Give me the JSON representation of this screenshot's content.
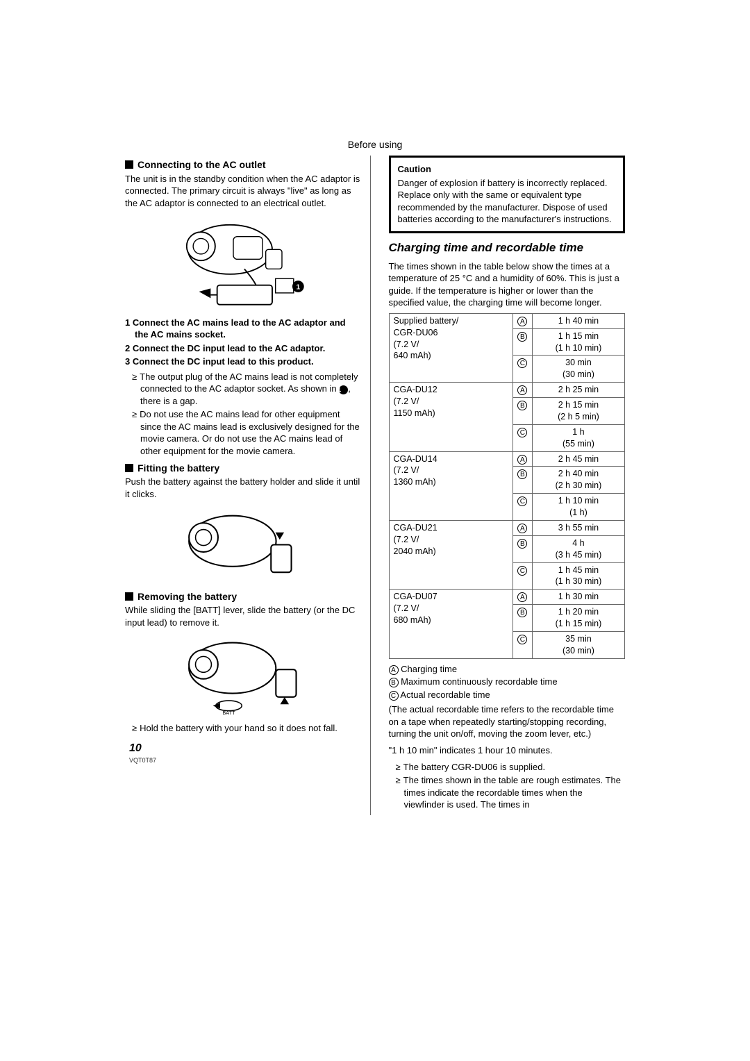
{
  "header": "Before using",
  "left": {
    "sec1": {
      "title": "Connecting to the AC outlet",
      "para": "The unit is in the standby condition when the AC adaptor is connected. The primary circuit is always \"live\" as long as the AC adaptor is connected to an electrical outlet.",
      "steps": [
        "Connect the AC mains lead to the AC adaptor and the AC mains socket.",
        "Connect the DC input lead to the AC adaptor.",
        "Connect the DC input lead to this product."
      ],
      "bullets": [
        "The output plug of the AC mains lead is not completely connected to the AC adaptor socket. As shown in ❶, there is a gap.",
        "Do not use the AC mains lead for other equipment since the AC mains lead is exclusively designed for the movie camera. Or do not use the AC mains lead of other equipment for the movie camera."
      ]
    },
    "sec2": {
      "title": "Fitting the battery",
      "para": "Push the battery against the battery holder and slide it until it clicks."
    },
    "sec3": {
      "title": "Removing the battery",
      "para": "While sliding the [BATT] lever, slide the battery (or the DC input lead) to remove it.",
      "bullet": "Hold the battery with your hand so it does not fall."
    }
  },
  "right": {
    "caution": {
      "title": "Caution",
      "body": "Danger of explosion if battery is incorrectly replaced. Replace only with the same or equivalent type recommended by the manufacturer. Dispose of used batteries according to the manufacturer's instructions."
    },
    "charge_title": "Charging time and recordable time",
    "charge_intro": "The times shown in the table below show the times at a temperature of 25 °C and a humidity of 60%. This is just a guide. If the temperature is higher or lower than the specified value, the charging time will become longer.",
    "table": {
      "rows": [
        {
          "model": "Supplied battery/\nCGR-DU06\n(7.2 V/\n640 mAh)",
          "cells": [
            {
              "sym": "A",
              "val": "1 h 40 min"
            },
            {
              "sym": "B",
              "val": "1 h 15 min\n(1 h 10 min)"
            },
            {
              "sym": "C",
              "val": "30 min\n(30 min)"
            }
          ]
        },
        {
          "model": "CGA-DU12\n(7.2 V/\n1150 mAh)",
          "cells": [
            {
              "sym": "A",
              "val": "2 h 25 min"
            },
            {
              "sym": "B",
              "val": "2 h 15 min\n(2 h 5 min)"
            },
            {
              "sym": "C",
              "val": "1 h\n(55 min)"
            }
          ]
        },
        {
          "model": "CGA-DU14\n(7.2 V/\n1360 mAh)",
          "cells": [
            {
              "sym": "A",
              "val": "2 h 45 min"
            },
            {
              "sym": "B",
              "val": "2 h 40 min\n(2 h 30 min)"
            },
            {
              "sym": "C",
              "val": "1 h 10 min\n(1 h)"
            }
          ]
        },
        {
          "model": "CGA-DU21\n(7.2 V/\n2040 mAh)",
          "cells": [
            {
              "sym": "A",
              "val": "3 h 55 min"
            },
            {
              "sym": "B",
              "val": "4 h\n(3 h 45 min)"
            },
            {
              "sym": "C",
              "val": "1 h 45 min\n(1 h 30 min)"
            }
          ]
        },
        {
          "model": "CGA-DU07\n(7.2 V/\n680 mAh)",
          "cells": [
            {
              "sym": "A",
              "val": "1 h 30 min"
            },
            {
              "sym": "B",
              "val": "1 h 20 min\n(1 h 15 min)"
            },
            {
              "sym": "C",
              "val": "35 min\n(30 min)"
            }
          ]
        }
      ]
    },
    "legend": {
      "A": "Charging time",
      "B": "Maximum continuously recordable time",
      "C": "Actual recordable time"
    },
    "after_para": "(The actual recordable time refers to the recordable time on a tape when repeatedly starting/stopping recording, turning the unit on/off, moving the zoom lever, etc.)",
    "note1": "\"1 h 10 min\" indicates 1 hour 10 minutes.",
    "bullets": [
      "The battery CGR-DU06 is supplied.",
      "The times shown in the table are rough estimates. The times indicate the recordable times when the viewfinder is used. The times in"
    ]
  },
  "page_number": "10",
  "doc_code": "VQT0T87"
}
